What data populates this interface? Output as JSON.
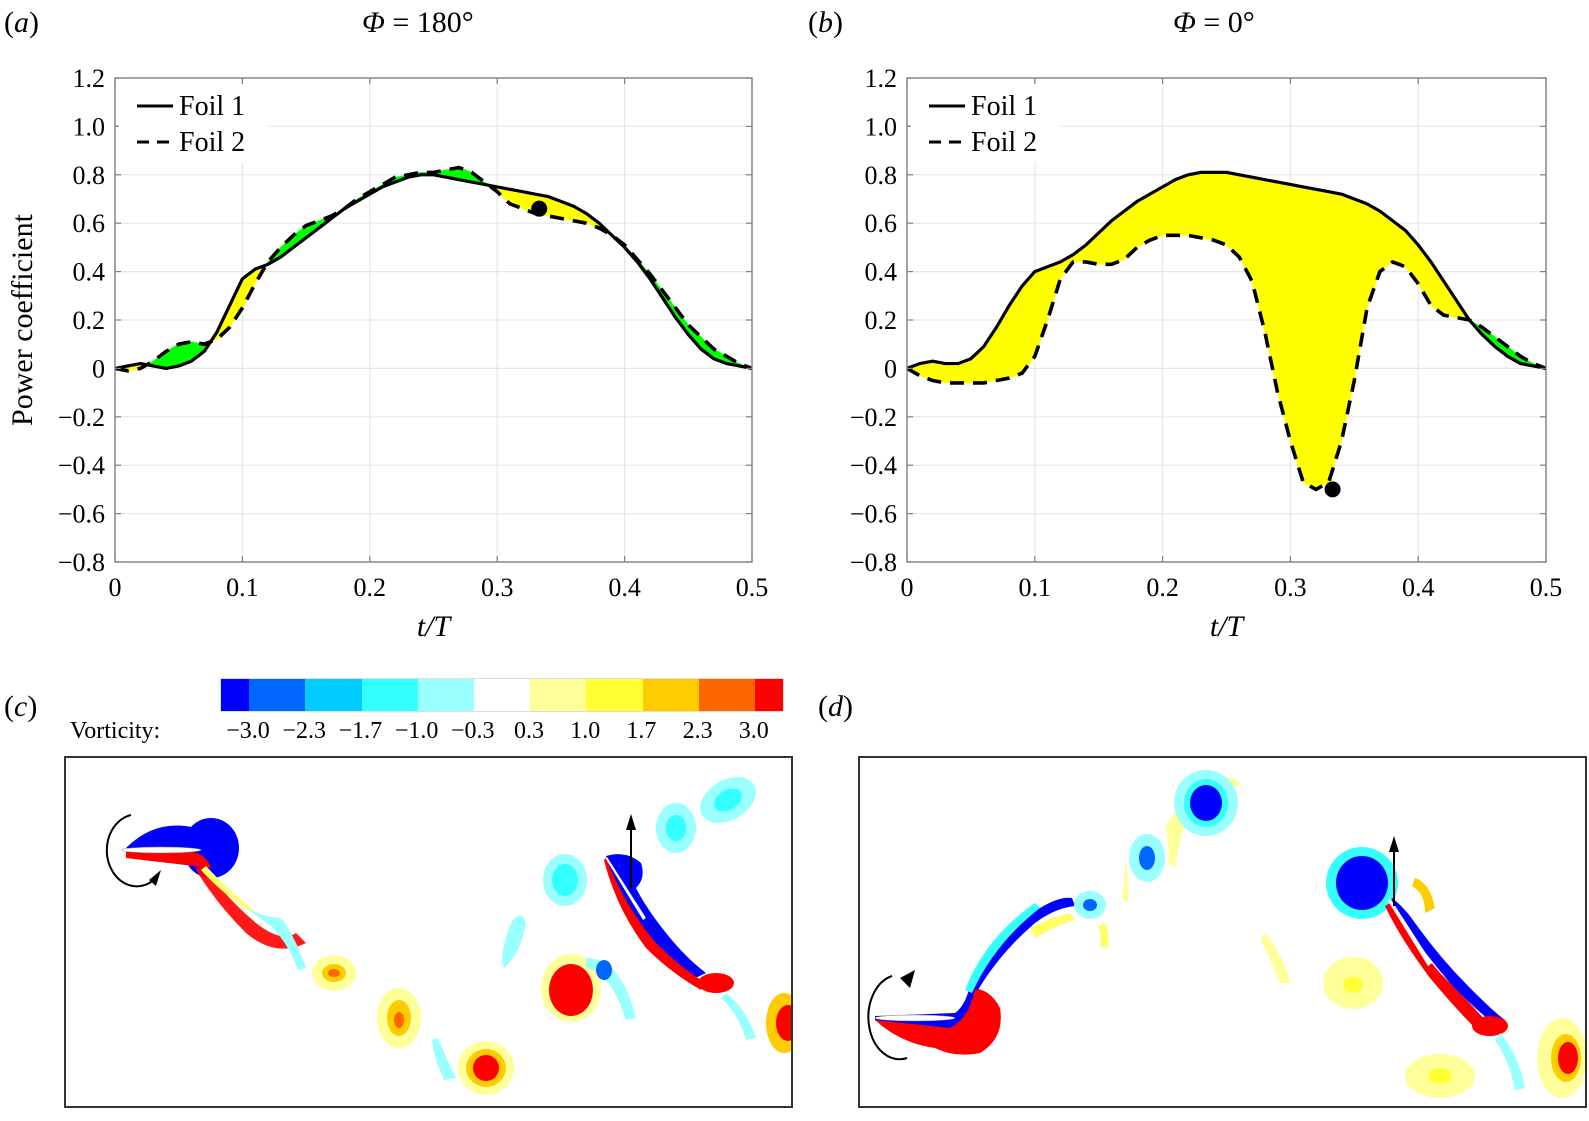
{
  "figure": {
    "panels": {
      "a": {
        "label": "a",
        "title_symbol": "Φ",
        "title_value": " = 180°"
      },
      "b": {
        "label": "b",
        "title_symbol": "Φ",
        "title_value": " = 0°"
      },
      "c": {
        "label": "c"
      },
      "d": {
        "label": "d"
      }
    },
    "colorbar": {
      "label": "Vorticity:",
      "ticks": [
        "−3.0",
        "−2.3",
        "−1.7",
        "−1.0",
        "−0.3",
        "0.3",
        "1.0",
        "1.7",
        "2.3",
        "3.0"
      ],
      "colors": [
        "#0000ff",
        "#0066ff",
        "#00ccff",
        "#33ffff",
        "#99ffff",
        "#ffffff",
        "#ffff99",
        "#ffff33",
        "#ffcc00",
        "#ff6600",
        "#ff0000"
      ]
    },
    "fill_colors": {
      "foil1_higher": "#ffff00",
      "foil2_higher": "#00ff00",
      "marker": "#000000"
    }
  },
  "chart_data": [
    {
      "type": "line",
      "panel": "a",
      "title": "Φ = 180°",
      "xlabel": "t/T",
      "ylabel": "Power coefficient",
      "xlim": [
        0,
        0.5
      ],
      "ylim": [
        -0.8,
        1.2
      ],
      "xticks": [
        0,
        0.1,
        0.2,
        0.3,
        0.4,
        0.5
      ],
      "xtick_labels": [
        "0",
        "0.1",
        "0.2",
        "0.3",
        "0.4",
        "0.5"
      ],
      "yticks": [
        1.2,
        1.0,
        0.8,
        0.6,
        0.4,
        0.2,
        0,
        -0.2,
        -0.4,
        -0.6,
        -0.8
      ],
      "ytick_labels": [
        "1.2",
        "1.0",
        "0.8",
        "0.6",
        "0.4",
        "0.2",
        "0",
        "−0.2",
        "−0.4",
        "−0.6",
        "−0.8"
      ],
      "grid": true,
      "legend": {
        "position": "top-left",
        "entries": [
          "Foil 1",
          "Foil 2"
        ]
      },
      "x": [
        0,
        0.01,
        0.02,
        0.03,
        0.04,
        0.05,
        0.06,
        0.07,
        0.08,
        0.09,
        0.1,
        0.11,
        0.12,
        0.13,
        0.14,
        0.15,
        0.16,
        0.17,
        0.18,
        0.19,
        0.2,
        0.21,
        0.22,
        0.23,
        0.24,
        0.25,
        0.26,
        0.27,
        0.28,
        0.29,
        0.3,
        0.31,
        0.32,
        0.33,
        0.34,
        0.35,
        0.36,
        0.37,
        0.38,
        0.39,
        0.4,
        0.41,
        0.42,
        0.43,
        0.44,
        0.45,
        0.46,
        0.47,
        0.48,
        0.49,
        0.5
      ],
      "series": [
        {
          "name": "Foil 1",
          "style": "solid",
          "values": [
            0.0,
            0.01,
            0.02,
            0.01,
            0.0,
            0.01,
            0.03,
            0.07,
            0.15,
            0.26,
            0.37,
            0.41,
            0.43,
            0.46,
            0.5,
            0.54,
            0.58,
            0.62,
            0.66,
            0.69,
            0.72,
            0.75,
            0.77,
            0.79,
            0.8,
            0.8,
            0.79,
            0.78,
            0.77,
            0.76,
            0.75,
            0.74,
            0.73,
            0.72,
            0.71,
            0.69,
            0.67,
            0.64,
            0.6,
            0.55,
            0.5,
            0.44,
            0.37,
            0.29,
            0.21,
            0.14,
            0.08,
            0.04,
            0.02,
            0.01,
            0.0
          ]
        },
        {
          "name": "Foil 2",
          "style": "dashed",
          "values": [
            0.0,
            -0.01,
            0.0,
            0.03,
            0.07,
            0.1,
            0.11,
            0.1,
            0.12,
            0.17,
            0.25,
            0.35,
            0.44,
            0.5,
            0.55,
            0.59,
            0.61,
            0.63,
            0.66,
            0.7,
            0.73,
            0.76,
            0.79,
            0.8,
            0.81,
            0.81,
            0.82,
            0.83,
            0.81,
            0.77,
            0.73,
            0.68,
            0.66,
            0.64,
            0.63,
            0.62,
            0.61,
            0.6,
            0.58,
            0.55,
            0.51,
            0.45,
            0.39,
            0.32,
            0.25,
            0.18,
            0.13,
            0.08,
            0.05,
            0.02,
            0.0
          ]
        }
      ],
      "marker": {
        "x": 0.333,
        "y": 0.66
      },
      "fill_between": {
        "foil1_above": "#ffff00",
        "foil2_above": "#00ff00"
      }
    },
    {
      "type": "line",
      "panel": "b",
      "title": "Φ = 0°",
      "xlabel": "t/T",
      "ylabel": "",
      "xlim": [
        0,
        0.5
      ],
      "ylim": [
        -0.8,
        1.2
      ],
      "xticks": [
        0,
        0.1,
        0.2,
        0.3,
        0.4,
        0.5
      ],
      "xtick_labels": [
        "0",
        "0.1",
        "0.2",
        "0.3",
        "0.4",
        "0.5"
      ],
      "yticks": [
        1.2,
        1.0,
        0.8,
        0.6,
        0.4,
        0.2,
        0,
        -0.2,
        -0.4,
        -0.6,
        -0.8
      ],
      "ytick_labels": [
        "1.2",
        "1.0",
        "0.8",
        "0.6",
        "0.4",
        "0.2",
        "0",
        "−0.2",
        "−0.4",
        "−0.6",
        "−0.8"
      ],
      "grid": true,
      "legend": {
        "position": "top-left",
        "entries": [
          "Foil 1",
          "Foil 2"
        ]
      },
      "x": [
        0,
        0.01,
        0.02,
        0.03,
        0.04,
        0.05,
        0.06,
        0.07,
        0.08,
        0.09,
        0.1,
        0.11,
        0.12,
        0.13,
        0.14,
        0.15,
        0.16,
        0.17,
        0.18,
        0.19,
        0.2,
        0.21,
        0.22,
        0.23,
        0.24,
        0.25,
        0.26,
        0.27,
        0.28,
        0.29,
        0.3,
        0.31,
        0.32,
        0.33,
        0.34,
        0.35,
        0.36,
        0.37,
        0.38,
        0.39,
        0.4,
        0.41,
        0.42,
        0.43,
        0.44,
        0.45,
        0.46,
        0.47,
        0.48,
        0.49,
        0.5
      ],
      "series": [
        {
          "name": "Foil 1",
          "style": "solid",
          "values": [
            0.0,
            0.02,
            0.03,
            0.02,
            0.02,
            0.04,
            0.09,
            0.17,
            0.26,
            0.34,
            0.4,
            0.42,
            0.44,
            0.47,
            0.51,
            0.56,
            0.61,
            0.65,
            0.69,
            0.72,
            0.75,
            0.78,
            0.8,
            0.81,
            0.81,
            0.81,
            0.8,
            0.79,
            0.78,
            0.77,
            0.76,
            0.75,
            0.74,
            0.73,
            0.72,
            0.7,
            0.68,
            0.65,
            0.61,
            0.57,
            0.51,
            0.44,
            0.36,
            0.28,
            0.2,
            0.14,
            0.09,
            0.05,
            0.02,
            0.01,
            0.0
          ]
        },
        {
          "name": "Foil 2",
          "style": "dashed",
          "values": [
            0.0,
            -0.03,
            -0.05,
            -0.06,
            -0.06,
            -0.06,
            -0.06,
            -0.05,
            -0.04,
            -0.02,
            0.05,
            0.2,
            0.37,
            0.44,
            0.44,
            0.43,
            0.43,
            0.45,
            0.5,
            0.53,
            0.55,
            0.55,
            0.55,
            0.54,
            0.53,
            0.51,
            0.46,
            0.36,
            0.15,
            -0.1,
            -0.3,
            -0.47,
            -0.5,
            -0.47,
            -0.3,
            -0.05,
            0.25,
            0.4,
            0.44,
            0.42,
            0.35,
            0.26,
            0.22,
            0.21,
            0.2,
            0.17,
            0.13,
            0.09,
            0.05,
            0.02,
            0.0
          ]
        }
      ],
      "marker": {
        "x": 0.333,
        "y": -0.5
      },
      "fill_between": {
        "foil1_above": "#ffff00",
        "foil2_above": "#00ff00"
      }
    }
  ]
}
